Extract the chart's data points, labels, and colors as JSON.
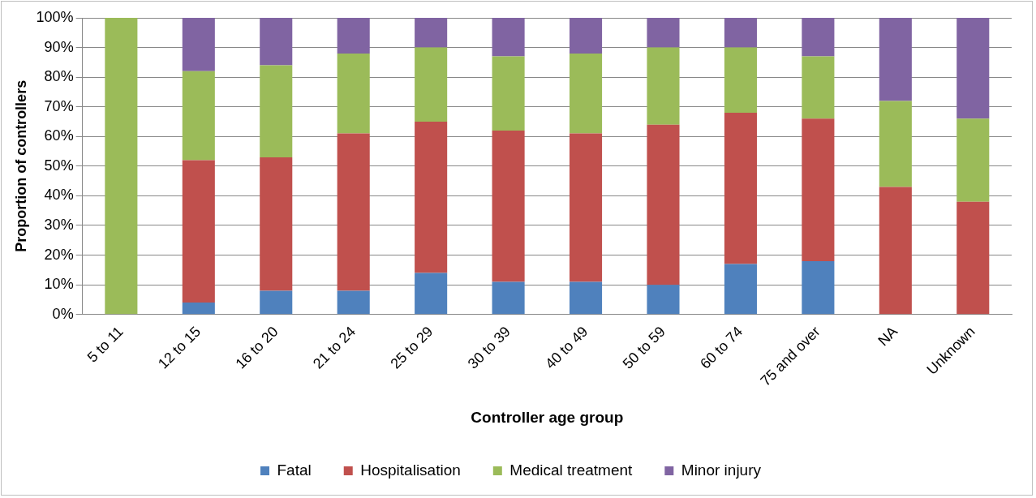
{
  "chart_data": {
    "type": "bar",
    "stacked": true,
    "xlabel": "Controller age group",
    "ylabel": "Proportion of controllers",
    "categories": [
      "5 to 11",
      "12 to 15",
      "16 to 20",
      "21 to 24",
      "25 to 29",
      "30 to 39",
      "40 to 49",
      "50 to 59",
      "60 to 74",
      "75 and over",
      "NA",
      "Unknown"
    ],
    "series": [
      {
        "name": "Fatal",
        "color": "#4f81bd",
        "values": [
          0,
          4,
          8,
          8,
          14,
          11,
          11,
          10,
          17,
          18,
          0,
          0
        ]
      },
      {
        "name": "Hospitalisation",
        "color": "#c0504d",
        "values": [
          0,
          48,
          45,
          53,
          51,
          51,
          50,
          54,
          51,
          48,
          43,
          38
        ]
      },
      {
        "name": "Medical treatment",
        "color": "#9bbb59",
        "values": [
          100,
          30,
          31,
          27,
          25,
          25,
          27,
          26,
          22,
          21,
          29,
          28
        ]
      },
      {
        "name": "Minor injury",
        "color": "#8064a2",
        "values": [
          0,
          18,
          16,
          12,
          10,
          13,
          12,
          10,
          10,
          13,
          28,
          34
        ]
      }
    ],
    "ylim": [
      0,
      100
    ],
    "yticks": [
      {
        "value": 0,
        "label": "0%"
      },
      {
        "value": 10,
        "label": "10%"
      },
      {
        "value": 20,
        "label": "20%"
      },
      {
        "value": 30,
        "label": "30%"
      },
      {
        "value": 40,
        "label": "40%"
      },
      {
        "value": 50,
        "label": "50%"
      },
      {
        "value": 60,
        "label": "60%"
      },
      {
        "value": 70,
        "label": "70%"
      },
      {
        "value": 80,
        "label": "80%"
      },
      {
        "value": 90,
        "label": "90%"
      },
      {
        "value": 100,
        "label": "100%"
      }
    ],
    "grid": "y",
    "legend": "bottom"
  }
}
